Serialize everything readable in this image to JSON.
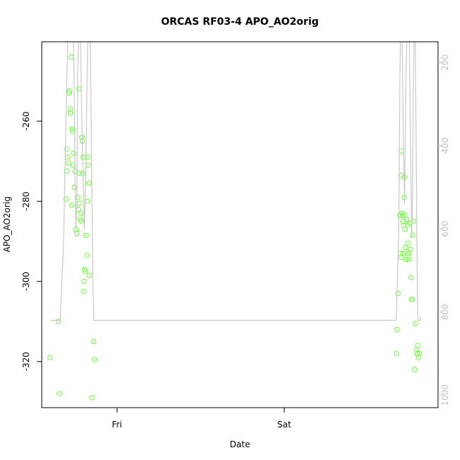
{
  "chart_data": {
    "type": "scatter",
    "title": "ORCAS RF03-4 APO_AO2orig",
    "xlabel": "Date",
    "ylabel": "APO_AO2orig",
    "x_ticks": [
      {
        "label": "Fri",
        "value": 1.0
      },
      {
        "label": "Sat",
        "value": 2.0
      }
    ],
    "xlim": [
      0.55,
      2.92
    ],
    "ylim": [
      -331.5,
      -240.2
    ],
    "y_ticks": [
      -320,
      -300,
      -280,
      -260
    ],
    "y2lim": [
      1030,
      150
    ],
    "y2_ticks": [
      200,
      400,
      600,
      800,
      1000
    ],
    "grid": false,
    "legend": "none",
    "colors": {
      "points": "#66ff33",
      "line": "#c8c8c8",
      "axes": "#000000",
      "right_axis": "#c0c0c0"
    },
    "series": [
      {
        "axis": "left",
        "mode": "points",
        "points": [
          {
            "x": 0.6,
            "y": -319.0
          },
          {
            "x": 0.655,
            "y": -328.0
          },
          {
            "x": 0.65,
            "y": -310.0
          },
          {
            "x": 0.695,
            "y": -279.5
          },
          {
            "x": 0.7,
            "y": -272.5
          },
          {
            "x": 0.7,
            "y": -267.0
          },
          {
            "x": 0.705,
            "y": -269.0
          },
          {
            "x": 0.71,
            "y": -270.5
          },
          {
            "x": 0.713,
            "y": -253.0
          },
          {
            "x": 0.716,
            "y": -252.5
          },
          {
            "x": 0.72,
            "y": -257.0
          },
          {
            "x": 0.722,
            "y": -258.0
          },
          {
            "x": 0.726,
            "y": -244.0
          },
          {
            "x": 0.73,
            "y": -262.0
          },
          {
            "x": 0.73,
            "y": -281.0
          },
          {
            "x": 0.735,
            "y": -262.5
          },
          {
            "x": 0.737,
            "y": -271.0
          },
          {
            "x": 0.741,
            "y": -268.0
          },
          {
            "x": 0.745,
            "y": -276.5
          },
          {
            "x": 0.75,
            "y": -272.5
          },
          {
            "x": 0.755,
            "y": -287.0
          },
          {
            "x": 0.76,
            "y": -288.0
          },
          {
            "x": 0.765,
            "y": -279.0
          },
          {
            "x": 0.768,
            "y": -282.0
          },
          {
            "x": 0.772,
            "y": -252.0
          },
          {
            "x": 0.775,
            "y": -273.0
          },
          {
            "x": 0.775,
            "y": -280.5
          },
          {
            "x": 0.78,
            "y": -284.5
          },
          {
            "x": 0.783,
            "y": -283.0
          },
          {
            "x": 0.786,
            "y": -285.0
          },
          {
            "x": 0.79,
            "y": -264.0
          },
          {
            "x": 0.792,
            "y": -265.0
          },
          {
            "x": 0.795,
            "y": -273.0
          },
          {
            "x": 0.797,
            "y": -269.0
          },
          {
            "x": 0.8,
            "y": -302.5
          },
          {
            "x": 0.803,
            "y": -300.0
          },
          {
            "x": 0.806,
            "y": -297.0
          },
          {
            "x": 0.81,
            "y": -297.5
          },
          {
            "x": 0.815,
            "y": -288.5
          },
          {
            "x": 0.82,
            "y": -293.5
          },
          {
            "x": 0.822,
            "y": -280.0
          },
          {
            "x": 0.826,
            "y": -269.0
          },
          {
            "x": 0.828,
            "y": -271.0
          },
          {
            "x": 0.832,
            "y": -275.5
          },
          {
            "x": 0.835,
            "y": -298.5
          },
          {
            "x": 0.85,
            "y": -329.0
          },
          {
            "x": 0.86,
            "y": -315.0
          },
          {
            "x": 0.865,
            "y": -319.5
          },
          {
            "x": 2.672,
            "y": -318.0
          },
          {
            "x": 2.675,
            "y": -312.0
          },
          {
            "x": 2.68,
            "y": -303.0
          },
          {
            "x": 2.69,
            "y": -283.5
          },
          {
            "x": 2.694,
            "y": -293.0
          },
          {
            "x": 2.697,
            "y": -273.5
          },
          {
            "x": 2.7,
            "y": -294.0
          },
          {
            "x": 2.701,
            "y": -267.5
          },
          {
            "x": 2.704,
            "y": -283.0
          },
          {
            "x": 2.707,
            "y": -283.5
          },
          {
            "x": 2.71,
            "y": -285.0
          },
          {
            "x": 2.712,
            "y": -293.0
          },
          {
            "x": 2.715,
            "y": -286.0
          },
          {
            "x": 2.717,
            "y": -279.0
          },
          {
            "x": 2.72,
            "y": -274.0
          },
          {
            "x": 2.72,
            "y": -283.5
          },
          {
            "x": 2.723,
            "y": -287.0
          },
          {
            "x": 2.725,
            "y": -291.5
          },
          {
            "x": 2.728,
            "y": -294.5
          },
          {
            "x": 2.732,
            "y": -284.5
          },
          {
            "x": 2.735,
            "y": -293.0
          },
          {
            "x": 2.738,
            "y": -286.0
          },
          {
            "x": 2.74,
            "y": -290.5
          },
          {
            "x": 2.745,
            "y": -294.5
          },
          {
            "x": 2.748,
            "y": -293.0
          },
          {
            "x": 2.75,
            "y": -285.5
          },
          {
            "x": 2.755,
            "y": -292.0
          },
          {
            "x": 2.758,
            "y": -299.0
          },
          {
            "x": 2.762,
            "y": -304.5
          },
          {
            "x": 2.765,
            "y": -304.5
          },
          {
            "x": 2.768,
            "y": -288.5
          },
          {
            "x": 2.772,
            "y": -285.0
          },
          {
            "x": 2.78,
            "y": -322.0
          },
          {
            "x": 2.785,
            "y": -310.5
          },
          {
            "x": 2.79,
            "y": -317.0
          },
          {
            "x": 2.795,
            "y": -318.0
          },
          {
            "x": 2.798,
            "y": -316.0
          },
          {
            "x": 2.802,
            "y": -319.0
          },
          {
            "x": 2.808,
            "y": -318.0
          }
        ]
      },
      {
        "axis": "right",
        "mode": "line",
        "points": [
          {
            "x": 0.6,
            "y": 820
          },
          {
            "x": 0.66,
            "y": 820
          },
          {
            "x": 0.68,
            "y": 640
          },
          {
            "x": 0.7,
            "y": 240
          },
          {
            "x": 0.706,
            "y": 150
          },
          {
            "x": 0.712,
            "y": 150
          },
          {
            "x": 0.72,
            "y": 120
          },
          {
            "x": 0.74,
            "y": 150
          },
          {
            "x": 0.745,
            "y": 300
          },
          {
            "x": 0.75,
            "y": 520
          },
          {
            "x": 0.755,
            "y": 600
          },
          {
            "x": 0.76,
            "y": 540
          },
          {
            "x": 0.765,
            "y": 230
          },
          {
            "x": 0.77,
            "y": 150
          },
          {
            "x": 0.775,
            "y": 120
          },
          {
            "x": 0.782,
            "y": 150
          },
          {
            "x": 0.79,
            "y": 340
          },
          {
            "x": 0.8,
            "y": 520
          },
          {
            "x": 0.805,
            "y": 600
          },
          {
            "x": 0.815,
            "y": 430
          },
          {
            "x": 0.82,
            "y": 270
          },
          {
            "x": 0.825,
            "y": 150
          },
          {
            "x": 0.83,
            "y": 120
          },
          {
            "x": 0.84,
            "y": 150
          },
          {
            "x": 0.848,
            "y": 420
          },
          {
            "x": 0.856,
            "y": 740
          },
          {
            "x": 0.862,
            "y": 820
          },
          {
            "x": 1.4,
            "y": 820
          },
          {
            "x": 2.67,
            "y": 820
          },
          {
            "x": 2.685,
            "y": 600
          },
          {
            "x": 2.692,
            "y": 230
          },
          {
            "x": 2.695,
            "y": 150
          },
          {
            "x": 2.7,
            "y": 120
          },
          {
            "x": 2.705,
            "y": 150
          },
          {
            "x": 2.712,
            "y": 380
          },
          {
            "x": 2.72,
            "y": 540
          },
          {
            "x": 2.728,
            "y": 230
          },
          {
            "x": 2.733,
            "y": 150
          },
          {
            "x": 2.74,
            "y": 120
          },
          {
            "x": 2.748,
            "y": 150
          },
          {
            "x": 2.755,
            "y": 360
          },
          {
            "x": 2.762,
            "y": 620
          },
          {
            "x": 2.768,
            "y": 520
          },
          {
            "x": 2.772,
            "y": 270
          },
          {
            "x": 2.776,
            "y": 150
          },
          {
            "x": 2.78,
            "y": 120
          },
          {
            "x": 2.784,
            "y": 150
          },
          {
            "x": 2.79,
            "y": 460
          },
          {
            "x": 2.796,
            "y": 760
          },
          {
            "x": 2.8,
            "y": 820
          },
          {
            "x": 2.815,
            "y": 820
          },
          {
            "x": 2.815,
            "y": 810
          }
        ]
      }
    ]
  }
}
